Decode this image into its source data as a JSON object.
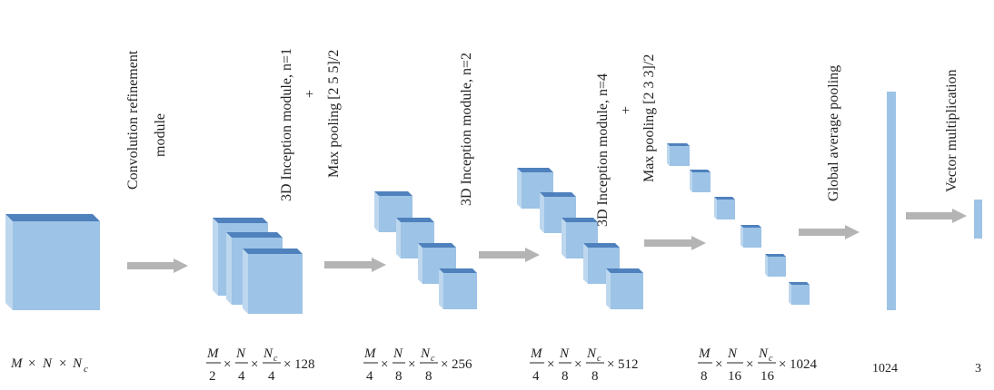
{
  "colors": {
    "cube_front": "#9dc3e6",
    "cube_top": "#4f81bd",
    "cube_side": "#bdd7ee",
    "arrow": "#b4b4b4",
    "text": "#222222"
  },
  "labels": {
    "conv_refine_line1": "Convolution refinement",
    "conv_refine_line2": "module",
    "incep1_line1": "3D Inception module, n=1",
    "incep1_plus": "+",
    "incep1_line2": "Max pooling [2 5 5]/2",
    "incep2_line1": "3D Inception module, n=2",
    "incep3_line1": "3D Inception module, n=4",
    "incep3_plus": "+",
    "incep3_line2": "Max pooling [2 3 3]/2",
    "gap": "Global average pooling",
    "vecmul": "Vector multiplication"
  },
  "dims": {
    "d0": {
      "a": "M",
      "b": "N",
      "c": "N",
      "c_sub": "c"
    },
    "d1": {
      "n1": "M",
      "d1": "2",
      "n2": "N",
      "d2": "4",
      "n3": "N",
      "n3_sub": "c",
      "d3": "4",
      "tail": "128"
    },
    "d2": {
      "n1": "M",
      "d1": "4",
      "n2": "N",
      "d2": "8",
      "n3": "N",
      "n3_sub": "c",
      "d3": "8",
      "tail": "256"
    },
    "d3": {
      "n1": "M",
      "d1": "4",
      "n2": "N",
      "d2": "8",
      "n3": "N",
      "n3_sub": "c",
      "d3": "8",
      "tail": "512"
    },
    "d4": {
      "n1": "M",
      "d1": "8",
      "n2": "N",
      "d2": "16",
      "n3": "N",
      "n3_sub": "c",
      "d3": "16",
      "tail": "1024"
    },
    "d5": "1024",
    "d6": "3"
  },
  "times": "×"
}
